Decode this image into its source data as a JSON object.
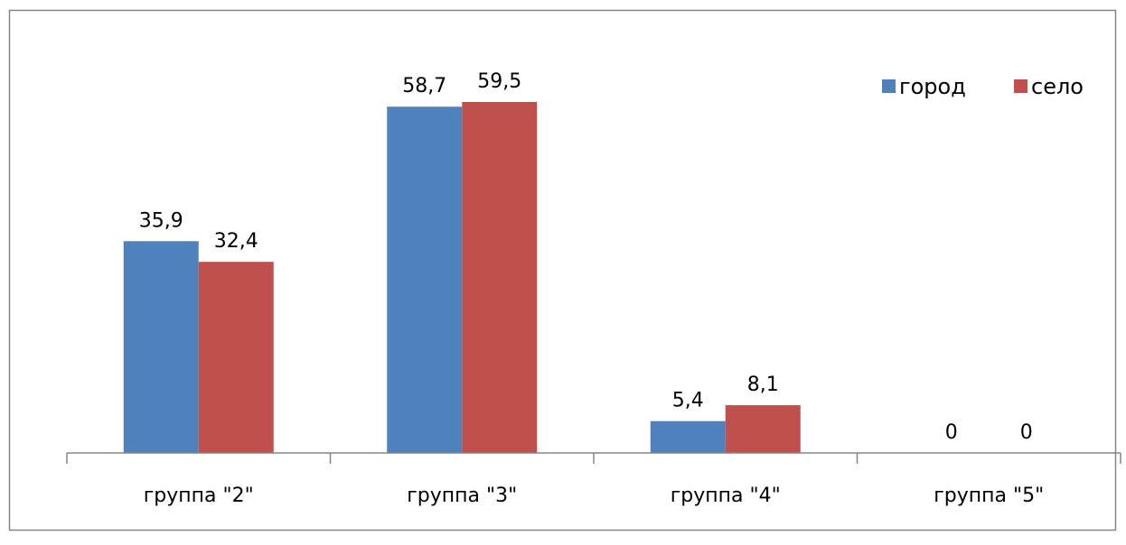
{
  "chart_data": {
    "type": "bar",
    "categories": [
      "группа \"2\"",
      "группа \"3\"",
      "группа \"4\"",
      "группа \"5\""
    ],
    "series": [
      {
        "name": "город",
        "values": [
          35.9,
          58.7,
          5.4,
          0
        ],
        "labels": [
          "35,9",
          "58,7",
          "5,4",
          "0"
        ],
        "color": "#4F81BD"
      },
      {
        "name": "село",
        "values": [
          32.4,
          59.5,
          8.1,
          0
        ],
        "labels": [
          "32,4",
          "59,5",
          "8,1",
          "0"
        ],
        "color": "#C0504D"
      }
    ],
    "title": "",
    "xlabel": "",
    "ylabel": "",
    "ylim": [
      0,
      70
    ],
    "grid": false,
    "legend": "top-right",
    "border_color": "#868686",
    "axis_color": "#868686"
  }
}
